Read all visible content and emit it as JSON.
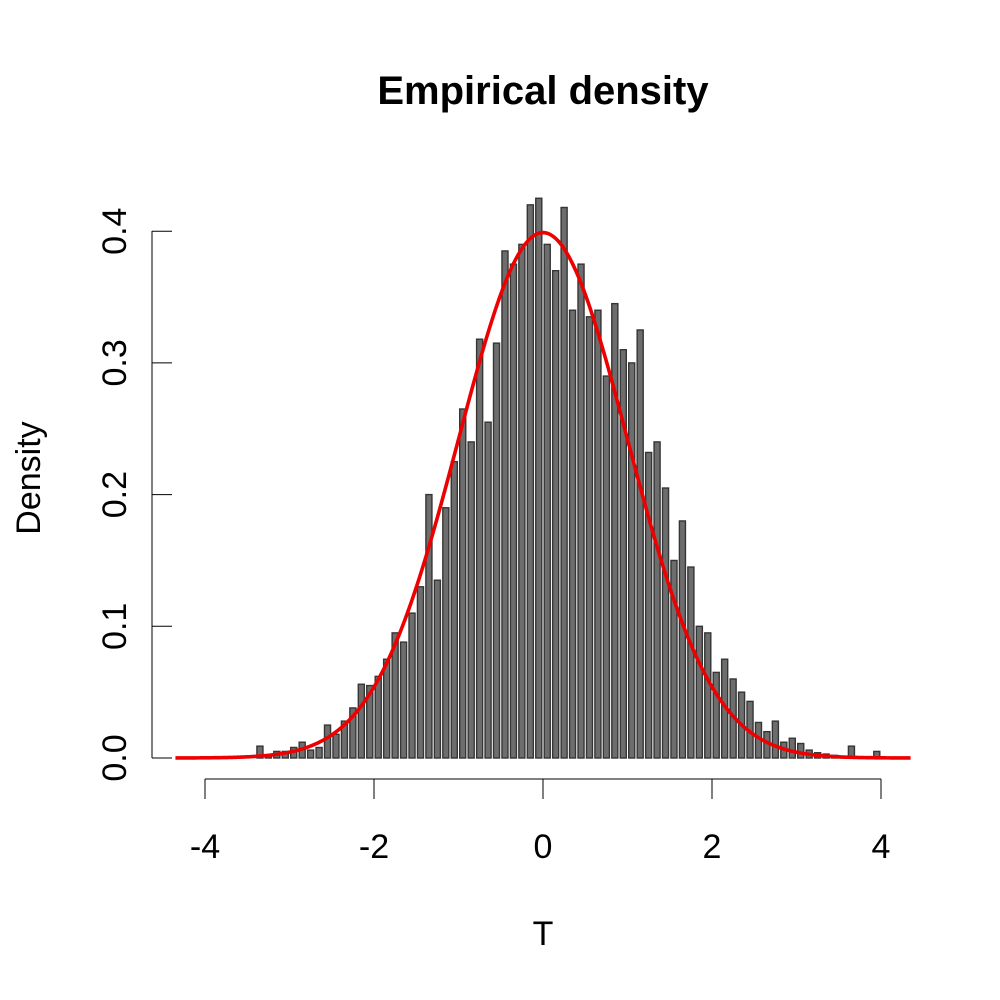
{
  "chart_data": {
    "type": "bar",
    "title": "Empirical density",
    "xlabel": "T",
    "ylabel": "Density",
    "xlim": [
      -4.35,
      4.35
    ],
    "ylim": [
      0,
      0.42
    ],
    "x_ticks": [
      -4,
      -2,
      0,
      2,
      4
    ],
    "x_tick_labels": [
      "-4",
      "-2",
      "0",
      "2",
      "4"
    ],
    "y_ticks": [
      0.0,
      0.1,
      0.2,
      0.3,
      0.4
    ],
    "y_tick_labels": [
      "0.0",
      "0.1",
      "0.2",
      "0.3",
      "0.4"
    ],
    "grid": false,
    "bin_width": 0.1,
    "series": [
      {
        "values": [
          {
            "x": -3.35,
            "y": 0.009
          },
          {
            "x": -3.25,
            "y": 0.002
          },
          {
            "x": -3.15,
            "y": 0.005
          },
          {
            "x": -3.05,
            "y": 0.005
          },
          {
            "x": -2.95,
            "y": 0.008
          },
          {
            "x": -2.85,
            "y": 0.012
          },
          {
            "x": -2.75,
            "y": 0.006
          },
          {
            "x": -2.65,
            "y": 0.008
          },
          {
            "x": -2.55,
            "y": 0.025
          },
          {
            "x": -2.45,
            "y": 0.018
          },
          {
            "x": -2.35,
            "y": 0.028
          },
          {
            "x": -2.25,
            "y": 0.038
          },
          {
            "x": -2.15,
            "y": 0.056
          },
          {
            "x": -2.05,
            "y": 0.055
          },
          {
            "x": -1.95,
            "y": 0.062
          },
          {
            "x": -1.85,
            "y": 0.075
          },
          {
            "x": -1.75,
            "y": 0.095
          },
          {
            "x": -1.65,
            "y": 0.088
          },
          {
            "x": -1.55,
            "y": 0.11
          },
          {
            "x": -1.45,
            "y": 0.13
          },
          {
            "x": -1.35,
            "y": 0.2
          },
          {
            "x": -1.25,
            "y": 0.135
          },
          {
            "x": -1.15,
            "y": 0.19
          },
          {
            "x": -1.05,
            "y": 0.225
          },
          {
            "x": -0.95,
            "y": 0.265
          },
          {
            "x": -0.85,
            "y": 0.24
          },
          {
            "x": -0.75,
            "y": 0.318
          },
          {
            "x": -0.65,
            "y": 0.255
          },
          {
            "x": -0.55,
            "y": 0.315
          },
          {
            "x": -0.45,
            "y": 0.385
          },
          {
            "x": -0.35,
            "y": 0.375
          },
          {
            "x": -0.25,
            "y": 0.39
          },
          {
            "x": -0.15,
            "y": 0.42
          },
          {
            "x": -0.05,
            "y": 0.425
          },
          {
            "x": 0.05,
            "y": 0.39
          },
          {
            "x": 0.15,
            "y": 0.37
          },
          {
            "x": 0.25,
            "y": 0.418
          },
          {
            "x": 0.35,
            "y": 0.34
          },
          {
            "x": 0.45,
            "y": 0.375
          },
          {
            "x": 0.55,
            "y": 0.335
          },
          {
            "x": 0.65,
            "y": 0.34
          },
          {
            "x": 0.75,
            "y": 0.29
          },
          {
            "x": 0.85,
            "y": 0.345
          },
          {
            "x": 0.95,
            "y": 0.31
          },
          {
            "x": 1.05,
            "y": 0.3
          },
          {
            "x": 1.15,
            "y": 0.325
          },
          {
            "x": 1.25,
            "y": 0.232
          },
          {
            "x": 1.35,
            "y": 0.24
          },
          {
            "x": 1.45,
            "y": 0.205
          },
          {
            "x": 1.55,
            "y": 0.15
          },
          {
            "x": 1.65,
            "y": 0.18
          },
          {
            "x": 1.75,
            "y": 0.145
          },
          {
            "x": 1.85,
            "y": 0.1
          },
          {
            "x": 1.95,
            "y": 0.095
          },
          {
            "x": 2.05,
            "y": 0.065
          },
          {
            "x": 2.15,
            "y": 0.075
          },
          {
            "x": 2.25,
            "y": 0.06
          },
          {
            "x": 2.35,
            "y": 0.05
          },
          {
            "x": 2.45,
            "y": 0.043
          },
          {
            "x": 2.55,
            "y": 0.027
          },
          {
            "x": 2.65,
            "y": 0.02
          },
          {
            "x": 2.75,
            "y": 0.028
          },
          {
            "x": 2.85,
            "y": 0.012
          },
          {
            "x": 2.95,
            "y": 0.015
          },
          {
            "x": 3.05,
            "y": 0.011
          },
          {
            "x": 3.15,
            "y": 0.006
          },
          {
            "x": 3.25,
            "y": 0.004
          },
          {
            "x": 3.35,
            "y": 0.003
          },
          {
            "x": 3.45,
            "y": 0.002
          },
          {
            "x": 3.55,
            "y": 0.001
          },
          {
            "x": 3.65,
            "y": 0.009
          },
          {
            "x": 3.75,
            "y": 0.001
          },
          {
            "x": 3.85,
            "y": 0.001
          },
          {
            "x": 3.95,
            "y": 0.005
          }
        ]
      },
      {
        "type": "line",
        "curve": "standard normal density",
        "color": "#ee0000",
        "mean": 0,
        "sd": 1,
        "x_range": [
          -4.35,
          4.35
        ]
      }
    ],
    "colors": {
      "bars": "#595959",
      "bar_outline": "#1a1a1a",
      "curve": "#ee0000"
    }
  }
}
